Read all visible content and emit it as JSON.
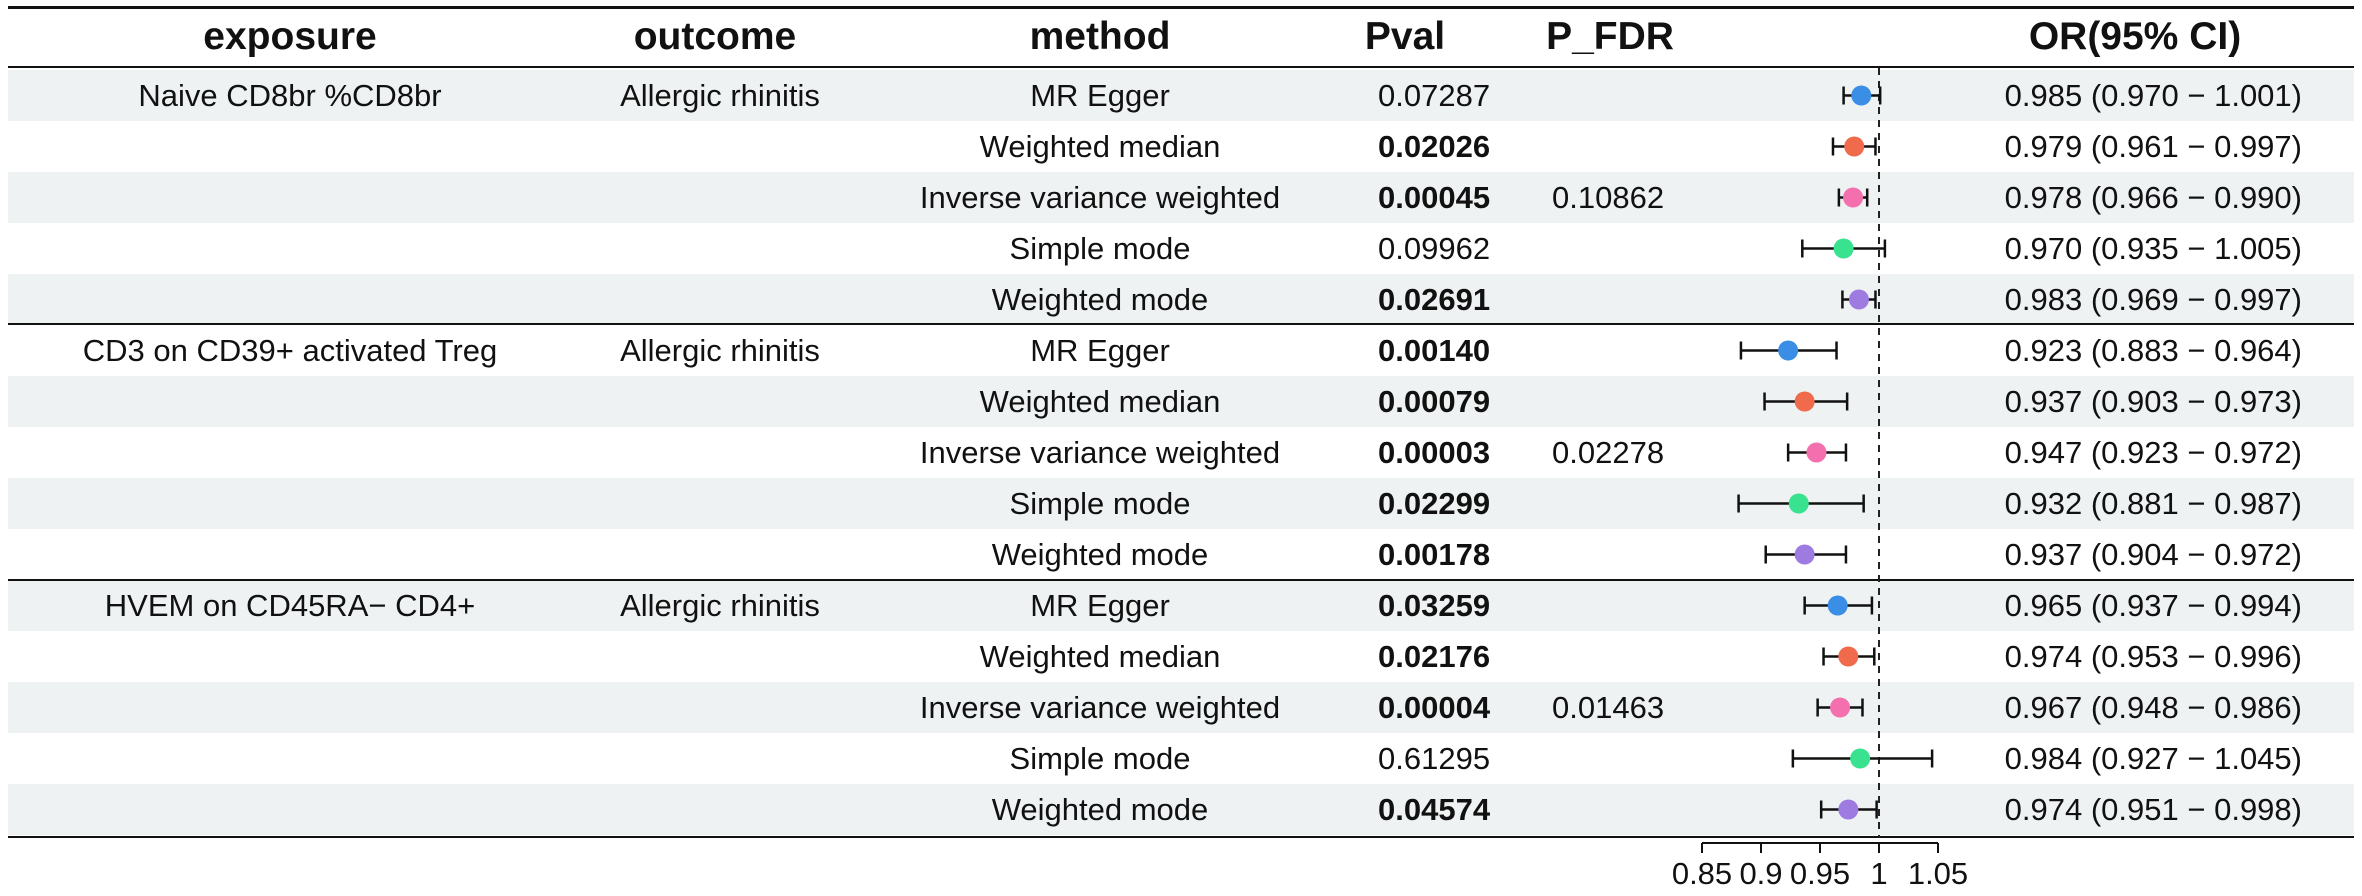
{
  "headers": {
    "exposure": "exposure",
    "outcome": "outcome",
    "method": "method",
    "pval": "Pval",
    "pfdr": "P_FDR",
    "or": "OR(95% CI)"
  },
  "chart_data": {
    "type": "forest",
    "reference_line": 1,
    "x_ticks": [
      0.85,
      0.9,
      0.95,
      1,
      1.05
    ],
    "x_tick_labels": [
      "0.85",
      "0.9",
      "0.95",
      "1",
      "1.05"
    ],
    "method_colors": {
      "MR Egger": "#3a8ee6",
      "Weighted median": "#f06a4c",
      "Inverse variance weighted": "#f46fae",
      "Simple mode": "#38e28e",
      "Weighted mode": "#9d7be0"
    },
    "rows": [
      {
        "exposure": "Naive  CD8br %CD8br",
        "outcome": "Allergic rhinitis",
        "method": "MR Egger",
        "pval": "0.07287",
        "sig": false,
        "pfdr": "",
        "or": 0.985,
        "lo": 0.97,
        "hi": 1.001,
        "or_text": "0.985 (0.970 − 1.001)"
      },
      {
        "exposure": "",
        "outcome": "",
        "method": "Weighted median",
        "pval": "0.02026",
        "sig": true,
        "pfdr": "",
        "or": 0.979,
        "lo": 0.961,
        "hi": 0.997,
        "or_text": "0.979 (0.961 − 0.997)"
      },
      {
        "exposure": "",
        "outcome": "",
        "method": "Inverse variance weighted",
        "pval": "0.00045",
        "sig": true,
        "pfdr": "0.10862",
        "or": 0.978,
        "lo": 0.966,
        "hi": 0.99,
        "or_text": "0.978 (0.966 − 0.990)"
      },
      {
        "exposure": "",
        "outcome": "",
        "method": "Simple mode",
        "pval": "0.09962",
        "sig": false,
        "pfdr": "",
        "or": 0.97,
        "lo": 0.935,
        "hi": 1.005,
        "or_text": "0.970 (0.935 − 1.005)"
      },
      {
        "exposure": "",
        "outcome": "",
        "method": "Weighted mode",
        "pval": "0.02691",
        "sig": true,
        "pfdr": "",
        "or": 0.983,
        "lo": 0.969,
        "hi": 0.997,
        "or_text": "0.983 (0.969 − 0.997)"
      },
      {
        "exposure": "CD3 on CD39+ activated Treg",
        "outcome": "Allergic rhinitis",
        "method": "MR Egger",
        "pval": "0.00140",
        "sig": true,
        "pfdr": "",
        "or": 0.923,
        "lo": 0.883,
        "hi": 0.964,
        "or_text": "0.923 (0.883 − 0.964)"
      },
      {
        "exposure": "",
        "outcome": "",
        "method": "Weighted median",
        "pval": "0.00079",
        "sig": true,
        "pfdr": "",
        "or": 0.937,
        "lo": 0.903,
        "hi": 0.973,
        "or_text": "0.937 (0.903 − 0.973)"
      },
      {
        "exposure": "",
        "outcome": "",
        "method": "Inverse variance weighted",
        "pval": "0.00003",
        "sig": true,
        "pfdr": "0.02278",
        "or": 0.947,
        "lo": 0.923,
        "hi": 0.972,
        "or_text": "0.947 (0.923 − 0.972)"
      },
      {
        "exposure": "",
        "outcome": "",
        "method": "Simple mode",
        "pval": "0.02299",
        "sig": true,
        "pfdr": "",
        "or": 0.932,
        "lo": 0.881,
        "hi": 0.987,
        "or_text": "0.932 (0.881 − 0.987)"
      },
      {
        "exposure": "",
        "outcome": "",
        "method": "Weighted mode",
        "pval": "0.00178",
        "sig": true,
        "pfdr": "",
        "or": 0.937,
        "lo": 0.904,
        "hi": 0.972,
        "or_text": "0.937 (0.904 − 0.972)"
      },
      {
        "exposure": "HVEM on CD45RA− CD4+",
        "outcome": "Allergic rhinitis",
        "method": "MR Egger",
        "pval": "0.03259",
        "sig": true,
        "pfdr": "",
        "or": 0.965,
        "lo": 0.937,
        "hi": 0.994,
        "or_text": "0.965 (0.937 − 0.994)"
      },
      {
        "exposure": "",
        "outcome": "",
        "method": "Weighted median",
        "pval": "0.02176",
        "sig": true,
        "pfdr": "",
        "or": 0.974,
        "lo": 0.953,
        "hi": 0.996,
        "or_text": "0.974 (0.953 − 0.996)"
      },
      {
        "exposure": "",
        "outcome": "",
        "method": "Inverse variance weighted",
        "pval": "0.00004",
        "sig": true,
        "pfdr": "0.01463",
        "or": 0.967,
        "lo": 0.948,
        "hi": 0.986,
        "or_text": "0.967 (0.948 − 0.986)"
      },
      {
        "exposure": "",
        "outcome": "",
        "method": "Simple mode",
        "pval": "0.61295",
        "sig": false,
        "pfdr": "",
        "or": 0.984,
        "lo": 0.927,
        "hi": 1.045,
        "or_text": "0.984 (0.927 − 1.045)"
      },
      {
        "exposure": "",
        "outcome": "",
        "method": "Weighted mode",
        "pval": "0.04574",
        "sig": true,
        "pfdr": "",
        "or": 0.974,
        "lo": 0.951,
        "hi": 0.998,
        "or_text": "0.974 (0.951 − 0.998)"
      }
    ]
  }
}
